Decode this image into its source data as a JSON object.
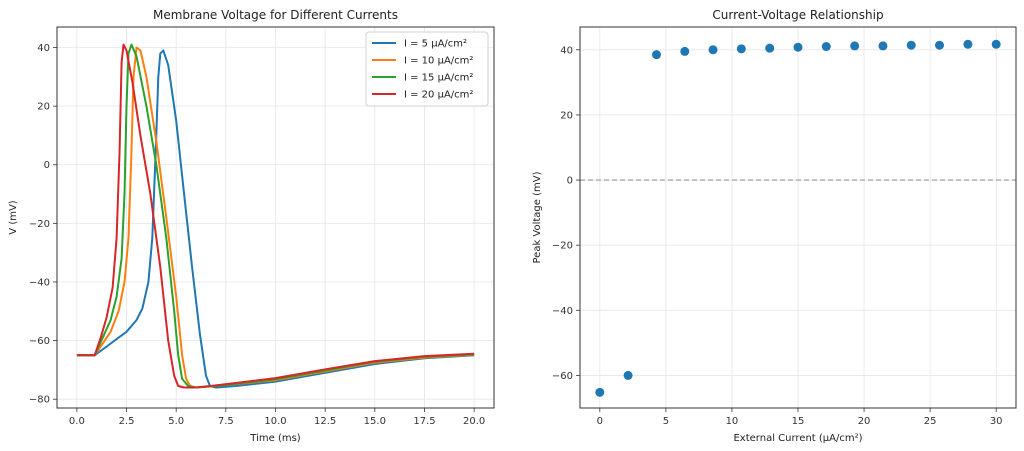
{
  "chart_data": [
    {
      "type": "line",
      "title": "Membrane Voltage for Different Currents",
      "xlabel": "Time (ms)",
      "ylabel": "V (mV)",
      "xlim": [
        -1.0,
        21.0
      ],
      "ylim": [
        -83,
        47
      ],
      "xticks": [
        0.0,
        2.5,
        5.0,
        7.5,
        10.0,
        12.5,
        15.0,
        17.5,
        20.0
      ],
      "xtick_labels": [
        "0.0",
        "2.5",
        "5.0",
        "7.5",
        "10.0",
        "12.5",
        "15.0",
        "17.5",
        "20.0"
      ],
      "yticks": [
        40,
        20,
        0,
        -20,
        -40,
        -60,
        -80
      ],
      "ytick_labels": [
        "40",
        "20",
        "0",
        "−20",
        "−40",
        "−60",
        "−80"
      ],
      "grid": true,
      "legend_position": "top-right",
      "series": [
        {
          "name": "I = 5 μA/cm²",
          "color": "#1f77b4",
          "x": [
            0,
            0.9,
            1.5,
            2.0,
            2.5,
            3.0,
            3.3,
            3.6,
            3.8,
            4.0,
            4.1,
            4.2,
            4.35,
            4.6,
            5.0,
            5.4,
            5.8,
            6.2,
            6.5,
            6.7,
            7.0,
            8.0,
            10.0,
            12.5,
            15.0,
            17.5,
            20.0
          ],
          "y": [
            -65,
            -65,
            -62,
            -59.5,
            -57,
            -53,
            -49,
            -40,
            -25,
            10,
            30,
            38,
            39,
            34,
            15,
            -10,
            -35,
            -58,
            -72,
            -75.5,
            -76,
            -75.5,
            -74,
            -71,
            -68,
            -66,
            -65
          ]
        },
        {
          "name": "I = 10 μA/cm²",
          "color": "#ff7f0e",
          "x": [
            0,
            0.9,
            1.3,
            1.7,
            2.1,
            2.4,
            2.6,
            2.75,
            2.85,
            3.0,
            3.2,
            3.5,
            4.0,
            4.5,
            5.0,
            5.3,
            5.5,
            5.7,
            6.0,
            7.0,
            10.0,
            12.5,
            15.0,
            17.5,
            20.0
          ],
          "y": [
            -65,
            -65,
            -61,
            -57,
            -50,
            -40,
            -25,
            5,
            30,
            40,
            39,
            30,
            8,
            -18,
            -45,
            -65,
            -73,
            -75.5,
            -76,
            -75.5,
            -73.5,
            -70.5,
            -67.5,
            -65.8,
            -64.8
          ]
        },
        {
          "name": "I = 15 μA/cm²",
          "color": "#2ca02c",
          "x": [
            0,
            0.9,
            1.3,
            1.7,
            2.0,
            2.25,
            2.4,
            2.5,
            2.6,
            2.75,
            3.0,
            3.5,
            4.0,
            4.5,
            4.9,
            5.1,
            5.3,
            5.6,
            6.0,
            7.0,
            10.0,
            12.5,
            15.0,
            17.5,
            20.0
          ],
          "y": [
            -65,
            -65,
            -59,
            -53,
            -45,
            -32,
            -10,
            20,
            38,
            41,
            37,
            20,
            0,
            -25,
            -50,
            -65,
            -73,
            -75.5,
            -76,
            -75.5,
            -73.2,
            -70.2,
            -67.2,
            -65.5,
            -64.7
          ]
        },
        {
          "name": "I = 20 μA/cm²",
          "color": "#d62728",
          "x": [
            0,
            0.9,
            1.2,
            1.5,
            1.8,
            2.0,
            2.15,
            2.25,
            2.35,
            2.5,
            2.8,
            3.2,
            3.7,
            4.2,
            4.6,
            4.9,
            5.1,
            5.4,
            6.0,
            7.0,
            10.0,
            12.5,
            15.0,
            17.5,
            20.0
          ],
          "y": [
            -65,
            -65,
            -59,
            -52,
            -42,
            -25,
            5,
            35,
            41,
            39,
            28,
            10,
            -10,
            -35,
            -60,
            -72,
            -75.5,
            -76,
            -76,
            -75.3,
            -72.8,
            -69.8,
            -67,
            -65.3,
            -64.5
          ]
        }
      ]
    },
    {
      "type": "scatter",
      "title": "Current-Voltage Relationship",
      "xlabel": "External Current (μA/cm²)",
      "ylabel": "Peak Voltage (mV)",
      "xlim": [
        -1.5,
        31.5
      ],
      "ylim": [
        -70,
        47
      ],
      "xticks": [
        0,
        5,
        10,
        15,
        20,
        25,
        30
      ],
      "xtick_labels": [
        "0",
        "5",
        "10",
        "15",
        "20",
        "25",
        "30"
      ],
      "yticks": [
        40,
        20,
        0,
        -20,
        -40,
        -60
      ],
      "ytick_labels": [
        "40",
        "20",
        "0",
        "−20",
        "−40",
        "−60"
      ],
      "grid": true,
      "reference_line": {
        "y": 0,
        "style": "dashed",
        "color": "#aaaaaa"
      },
      "series": [
        {
          "name": "Peak voltage",
          "color": "#1f77b4",
          "x": [
            0.0,
            2.14,
            4.29,
            6.43,
            8.57,
            10.71,
            12.86,
            15.0,
            17.14,
            19.29,
            21.43,
            23.57,
            25.71,
            27.86,
            30.0
          ],
          "y": [
            -65.2,
            -60.0,
            38.5,
            39.5,
            40.0,
            40.3,
            40.5,
            40.8,
            41.0,
            41.2,
            41.2,
            41.4,
            41.4,
            41.7,
            41.7
          ]
        }
      ]
    }
  ]
}
